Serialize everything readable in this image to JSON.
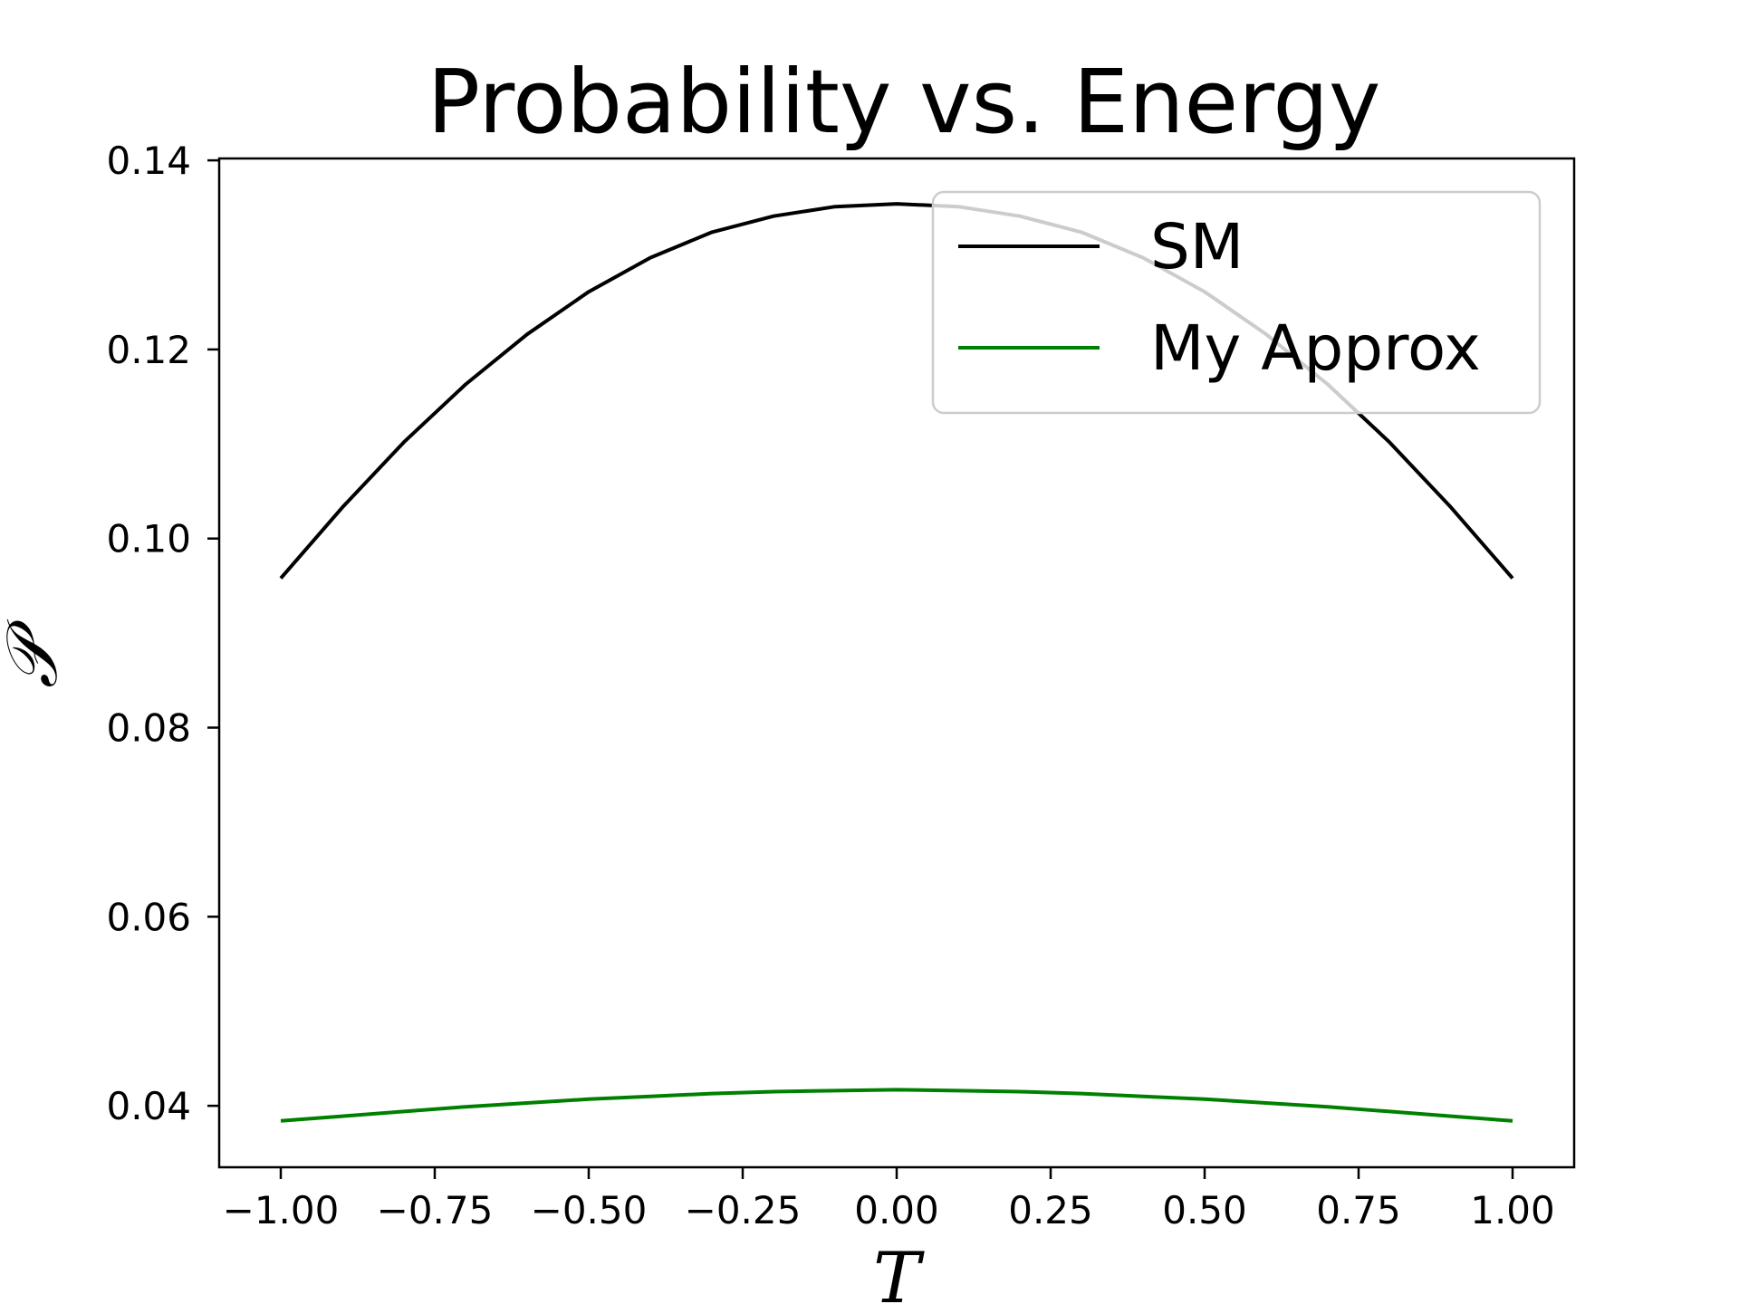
{
  "chart_data": {
    "type": "line",
    "title": "Probability vs. Energy",
    "xlabel": "T",
    "ylabel": "𝒫",
    "xlim": [
      -1.1,
      1.1
    ],
    "ylim": [
      0.0335,
      0.1402
    ],
    "xticks": [
      -1.0,
      -0.75,
      -0.5,
      -0.25,
      0.0,
      0.25,
      0.5,
      0.75,
      1.0
    ],
    "xtick_labels": [
      "−1.00",
      "−0.75",
      "−0.50",
      "−0.25",
      "0.00",
      "0.25",
      "0.50",
      "0.75",
      "1.00"
    ],
    "yticks": [
      0.04,
      0.06,
      0.08,
      0.1,
      0.12,
      0.14
    ],
    "ytick_labels": [
      "0.04",
      "0.06",
      "0.08",
      "0.10",
      "0.12",
      "0.14"
    ],
    "grid": false,
    "legend_position": "top-right",
    "x": [
      -1.0,
      -0.9,
      -0.8,
      -0.7,
      -0.6,
      -0.5,
      -0.4,
      -0.3,
      -0.2,
      -0.1,
      0.0,
      0.1,
      0.2,
      0.3,
      0.4,
      0.5,
      0.6,
      0.7,
      0.8,
      0.9,
      1.0
    ],
    "series": [
      {
        "name": "SM",
        "color": "#000000",
        "values": [
          0.0958,
          0.1033,
          0.1102,
          0.1163,
          0.1216,
          0.1261,
          0.1297,
          0.1324,
          0.1341,
          0.1351,
          0.1354,
          0.1351,
          0.1341,
          0.1324,
          0.1297,
          0.1261,
          0.1216,
          0.1163,
          0.1102,
          0.1033,
          0.0958
        ]
      },
      {
        "name": "My Approx",
        "color": "#008000",
        "values": [
          0.0384,
          0.0389,
          0.0394,
          0.0399,
          0.0403,
          0.0407,
          0.041,
          0.0413,
          0.0415,
          0.0416,
          0.0417,
          0.0416,
          0.0415,
          0.0413,
          0.041,
          0.0407,
          0.0403,
          0.0399,
          0.0394,
          0.0389,
          0.0384
        ]
      }
    ]
  }
}
